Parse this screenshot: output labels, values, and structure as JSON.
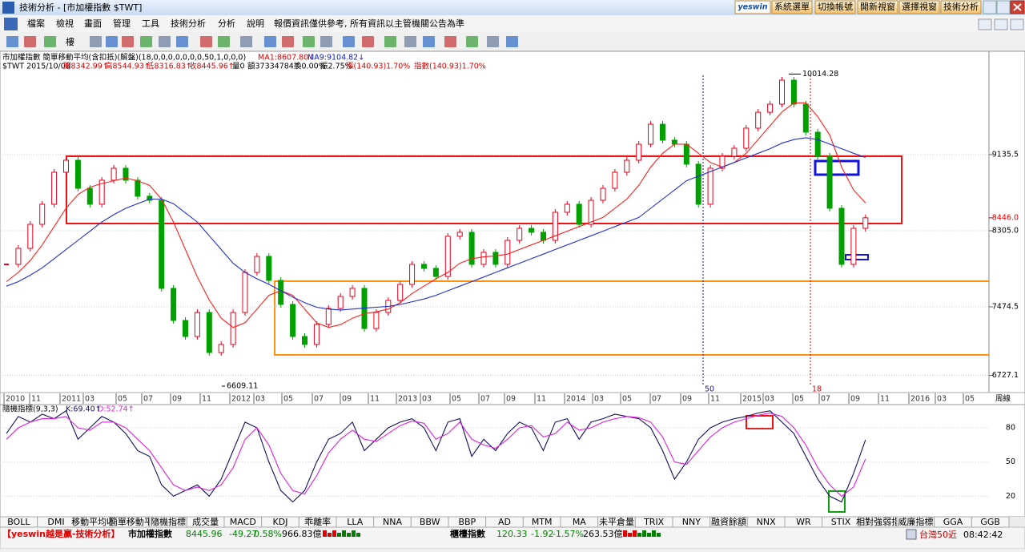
{
  "window": {
    "title": "技術分析 - [市加權指數 $TWT]",
    "logo": "yeswin",
    "buttons": [
      "系統選單",
      "切換帳號",
      "開新視窗",
      "選擇視窗",
      "技術分析"
    ]
  },
  "menu": [
    "檔案",
    "檢視",
    "畫面",
    "管理",
    "工具",
    "技術分析",
    "分析",
    "說明"
  ],
  "notice": "報價資訊僅供參考, 所有資訊以主管機關公告為準",
  "toolbar": {
    "floor_label": "樓"
  },
  "info": {
    "line1": "市加權指數 簡單移動平均(含扣抵)(解盤)(18,0,0,0,0,0,0,0,50,1,0,0,0)",
    "ma1": "MA1:8607.80↓",
    "ma9": "MA9:9104.82↓",
    "line2": [
      "$TWT 2015/10/08",
      "開8342.99↑",
      "高8544.93↑",
      "低8316.83↑",
      "收8445.96↑",
      "量0",
      "額37334784↑",
      "換0.00%",
      "振2.75%",
      "漲(140.93)1.70%",
      "指數(140.93)1.70%"
    ]
  },
  "chart_data": [
    {
      "type": "candlestick",
      "close": [
        7938,
        8113,
        8375,
        8594,
        8943,
        9074,
        8768,
        8594,
        8856,
        8987,
        8856,
        8681,
        8637,
        7676,
        7326,
        7151,
        7413,
        6976,
        7064,
        7413,
        7850,
        8025,
        7763,
        7501,
        7151,
        7064,
        7282,
        7457,
        7588,
        7676,
        7238,
        7413,
        7544,
        7719,
        7938,
        7894,
        7806,
        8244,
        8288,
        7938,
        8069,
        7938,
        8200,
        8331,
        8288,
        8200,
        8506,
        8594,
        8375,
        8637,
        8768,
        8943,
        9074,
        9249,
        9467,
        9293,
        9249,
        9031,
        8594,
        8987,
        9118,
        9205,
        9424,
        9598,
        9686,
        9948,
        9686,
        9380,
        9118,
        8550,
        7938,
        8331,
        8445.96
      ],
      "up_color": "#e8001c",
      "down_color": "#00a000",
      "ma": [
        {
          "color": "#ff2020",
          "values": [
            7750,
            7850,
            7980,
            8150,
            8350,
            8550,
            8700,
            8780,
            8820,
            8850,
            8880,
            8850,
            8800,
            8650,
            8400,
            8100,
            7800,
            7550,
            7350,
            7250,
            7300,
            7450,
            7600,
            7650,
            7600,
            7450,
            7300,
            7250,
            7280,
            7350,
            7400,
            7420,
            7450,
            7520,
            7620,
            7700,
            7780,
            7850,
            7950,
            8000,
            8020,
            8030,
            8050,
            8100,
            8150,
            8200,
            8250,
            8300,
            8350,
            8400,
            8450,
            8550,
            8650,
            8800,
            9000,
            9150,
            9250,
            9250,
            9150,
            9050,
            9000,
            9050,
            9150,
            9300,
            9450,
            9600,
            9700,
            9700,
            9550,
            9350,
            9000,
            8750,
            8607.8
          ]
        },
        {
          "color": "#2030d0",
          "values": [
            7700,
            7750,
            7820,
            7900,
            8000,
            8100,
            8200,
            8300,
            8400,
            8480,
            8550,
            8600,
            8650,
            8650,
            8600,
            8500,
            8400,
            8250,
            8100,
            7950,
            7850,
            7780,
            7720,
            7650,
            7580,
            7520,
            7470,
            7450,
            7440,
            7450,
            7460,
            7470,
            7480,
            7500,
            7530,
            7560,
            7600,
            7650,
            7700,
            7750,
            7800,
            7850,
            7900,
            7950,
            8000,
            8050,
            8100,
            8150,
            8200,
            8250,
            8300,
            8350,
            8400,
            8450,
            8550,
            8650,
            8750,
            8850,
            8900,
            8950,
            9000,
            9050,
            9100,
            9150,
            9200,
            9260,
            9300,
            9320,
            9300,
            9250,
            9200,
            9150,
            9104.82
          ]
        }
      ],
      "ylim": [
        6539,
        10263
      ],
      "yticks": [
        6727.1,
        7474.5,
        {
          "value": 8305,
          "label": "8305.0"
        },
        9135.5
      ],
      "last_price": {
        "value": 8446,
        "label": "8446.0"
      },
      "high": 10014.28,
      "low": 6609.11,
      "markers": [
        50,
        18
      ],
      "xticks": [
        "2010",
        "11",
        "2011",
        "03",
        "05",
        "07",
        "09",
        "11",
        "2012",
        "03",
        "05",
        "07",
        "09",
        "11",
        "2013",
        "03",
        "05",
        "07",
        "09",
        "11",
        "2014",
        "03",
        "05",
        "07",
        "09",
        "11",
        "2015",
        "03",
        "05",
        "07",
        "09",
        "11",
        "2016",
        "03",
        "05"
      ],
      "period": "周線"
    },
    {
      "type": "line",
      "title": "隨機指標(9,3,3)",
      "series": [
        {
          "name": "K:69.40↑",
          "color": "#101060",
          "values": [
            75,
            90,
            85,
            92,
            88,
            95,
            70,
            80,
            90,
            85,
            75,
            60,
            55,
            30,
            20,
            25,
            30,
            20,
            35,
            60,
            85,
            80,
            50,
            25,
            15,
            25,
            50,
            70,
            75,
            85,
            60,
            70,
            80,
            85,
            88,
            80,
            60,
            85,
            88,
            55,
            70,
            60,
            75,
            85,
            80,
            60,
            85,
            88,
            70,
            85,
            88,
            92,
            90,
            88,
            80,
            60,
            35,
            50,
            70,
            80,
            85,
            88,
            90,
            93,
            95,
            85,
            75,
            55,
            35,
            20,
            15,
            40,
            69.4
          ]
        },
        {
          "name": "D:52.74↑",
          "color": "#e020e0",
          "values": [
            70,
            80,
            85,
            88,
            88,
            90,
            80,
            78,
            85,
            85,
            80,
            70,
            60,
            45,
            30,
            25,
            28,
            25,
            30,
            45,
            70,
            80,
            65,
            40,
            25,
            22,
            38,
            58,
            70,
            78,
            70,
            68,
            75,
            82,
            86,
            84,
            70,
            75,
            85,
            70,
            65,
            62,
            70,
            80,
            82,
            72,
            75,
            85,
            78,
            80,
            85,
            88,
            90,
            89,
            85,
            72,
            50,
            48,
            60,
            72,
            80,
            85,
            88,
            91,
            93,
            90,
            80,
            65,
            45,
            30,
            20,
            28,
            52.74
          ]
        }
      ],
      "ylim": [
        2,
        99
      ],
      "yticks": [
        20,
        50,
        80
      ]
    }
  ],
  "tabs": [
    "BOLL",
    "DMI",
    "移動平均收",
    "簡單移動平",
    "隨機指標",
    "成交量",
    "MACD",
    "KDJ",
    "乖離率",
    "LLA",
    "NNA",
    "BBW",
    "BBP",
    "AD",
    "MTM",
    "MA",
    "未平倉量",
    "TRIX",
    "NNY",
    "融資餘額",
    "NNX",
    "WR",
    "STIX",
    "相對強弱指",
    "威廉指標",
    "GGA",
    "GGB"
  ],
  "status": {
    "brand": "【yeswin越是贏-技術分析】",
    "twse": {
      "name": "市加權指數",
      "price": "8445.96",
      "change": "-49.27",
      "pct": "-0.58%",
      "amount": "966.83億"
    },
    "otc": {
      "name": "櫃檯指數",
      "price": "120.33",
      "change": "-1.92",
      "pct": "-1.57%",
      "amount": "263.53億"
    },
    "etf": "台灣50近",
    "time": "08:42:42"
  }
}
